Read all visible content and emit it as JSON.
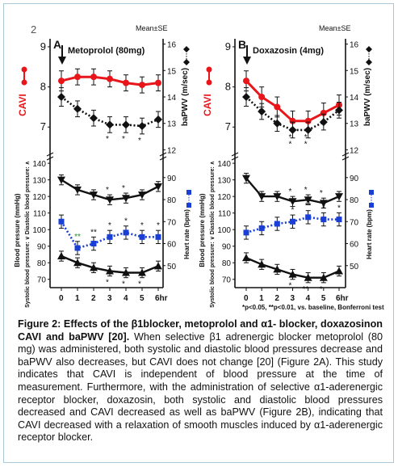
{
  "figure_number": "2",
  "mean_se_label": "Mean±SE",
  "footnote": "*p<0.05, **p<0.01, vs. baseline, Bonferroni test",
  "caption": {
    "bold": "Figure 2: Effects of the β1blocker, metoprolol and α1- blocker, doxazosinon CAVI and baPWV [20].",
    "text": " When selective β1 adrenergic blocker metoprolol (80 mg) was administered, both systolic and diastolic blood pressures decrease and baPWV also decreases, but CAVI does not change [20] (Figure 2A). This study indicates that CAVI is independent of blood pressure at the time of measurement. Furthermore, with the administration of selective α1-aderenergic receptor blocker, doxazosin, both systolic and diastolic blood pressures decreased and CAVI decreased as well as baPWV (Figure 2B), indicating that CAVI decreased with a relaxation of smooth muscles induced by α1-aderenergic receptor blocker."
  },
  "colors": {
    "cavi": "#e8161b",
    "hr": "#1a3fd6",
    "ink": "#111111",
    "frame": "#a8c8d8"
  },
  "chart_data": [
    {
      "type": "line",
      "panel": "A",
      "drug_label": "Metoprolol (80mg)",
      "x": [
        0,
        1,
        2,
        3,
        4,
        5,
        6
      ],
      "x_tick_labels": [
        "0",
        "1",
        "2",
        "3",
        "4",
        "5",
        "6hr"
      ],
      "top": {
        "left_axis": {
          "label": "CAVI",
          "ticks": [
            "7",
            "8",
            "9"
          ],
          "ylim": [
            6.3,
            9.2
          ]
        },
        "right_axis": {
          "label": "baPWV (m/sec)",
          "ticks": [
            "12",
            "13",
            "14",
            "15",
            "16"
          ],
          "ylim": [
            11.8,
            16.2
          ]
        },
        "series": [
          {
            "key": "cavi",
            "axis": "left",
            "style": "solid-red",
            "values": [
              8.15,
              8.25,
              8.25,
              8.2,
              8.1,
              8.05,
              8.1
            ],
            "err": [
              0.25,
              0.2,
              0.2,
              0.2,
              0.2,
              0.2,
              0.2
            ],
            "marks": [
              "",
              "",
              "",
              "",
              "",
              "",
              ""
            ]
          },
          {
            "key": "bapwv",
            "axis": "right",
            "style": "dotted-diamond",
            "values": [
              14.0,
              13.55,
              13.2,
              12.95,
              12.95,
              12.9,
              13.15
            ],
            "err": [
              0.35,
              0.3,
              0.3,
              0.3,
              0.3,
              0.3,
              0.3
            ],
            "marks": [
              "",
              "",
              "",
              "*",
              "*",
              "*",
              ""
            ]
          }
        ]
      },
      "bottom": {
        "left_axis": {
          "label": "Blood pressure (mmHg)",
          "sublabel": "Systolic blood pressure: ∨ Diastolic blood pressure: ∧",
          "ticks": [
            "70",
            "80",
            "90",
            "100",
            "110",
            "120",
            "130",
            "140"
          ],
          "ylim": [
            65,
            142
          ]
        },
        "right_axis": {
          "label": "Heart rate (bpm)",
          "ticks": [
            "50",
            "60",
            "70",
            "80",
            "90"
          ],
          "ylim": [
            40,
            98
          ]
        },
        "series": [
          {
            "key": "sbp",
            "axis": "left",
            "style": "solid-down-triangle",
            "values": [
              130,
              124,
              121,
              118,
              119,
              121,
              126
            ],
            "err": [
              3,
              3,
              3,
              3,
              3,
              3,
              3
            ],
            "marks": [
              "",
              "",
              "",
              "*",
              "*",
              "",
              ""
            ]
          },
          {
            "key": "hr",
            "axis": "right",
            "style": "dotted-blue-square",
            "values": [
              70,
              58,
              60,
              63,
              65,
              63,
              63
            ],
            "err": [
              3,
              3,
              3,
              3,
              3,
              3,
              3
            ],
            "marks": [
              "",
              "**",
              "**",
              "*",
              "*",
              "*",
              "*"
            ]
          },
          {
            "key": "dbp",
            "axis": "left",
            "style": "solid-up-triangle",
            "values": [
              84,
              80,
              77,
              75,
              74,
              74,
              78
            ],
            "err": [
              3,
              3,
              3,
              3,
              3,
              3,
              3
            ],
            "marks": [
              "",
              "",
              "",
              "*",
              "*",
              "*",
              ""
            ]
          }
        ]
      }
    },
    {
      "type": "line",
      "panel": "B",
      "drug_label": "Doxazosin (4mg)",
      "x": [
        0,
        1,
        2,
        3,
        4,
        5,
        6
      ],
      "x_tick_labels": [
        "0",
        "1",
        "2",
        "3",
        "4",
        "5",
        "6hr"
      ],
      "top": {
        "left_axis": {
          "label": "CAVI",
          "ticks": [
            "7",
            "8",
            "9"
          ],
          "ylim": [
            6.3,
            9.2
          ]
        },
        "right_axis": {
          "label": "baPWV (m/sec)",
          "ticks": [
            "12",
            "13",
            "14",
            "15",
            "16"
          ],
          "ylim": [
            11.8,
            16.2
          ]
        },
        "series": [
          {
            "key": "cavi",
            "axis": "left",
            "style": "solid-red",
            "values": [
              8.15,
              7.75,
              7.5,
              7.15,
              7.15,
              7.35,
              7.55
            ],
            "err": [
              0.25,
              0.25,
              0.25,
              0.25,
              0.25,
              0.25,
              0.25
            ],
            "marks": [
              "",
              "",
              "",
              "*",
              "*",
              "",
              ""
            ]
          },
          {
            "key": "bapwv",
            "axis": "right",
            "style": "dotted-diamond",
            "values": [
              14.0,
              13.45,
              13.0,
              12.75,
              12.75,
              13.05,
              13.5
            ],
            "err": [
              0.35,
              0.3,
              0.3,
              0.3,
              0.3,
              0.3,
              0.3
            ],
            "marks": [
              "",
              "",
              "",
              "*",
              "*",
              "",
              ""
            ]
          }
        ]
      },
      "bottom": {
        "left_axis": {
          "label": "Blood pressure (mmHg)",
          "sublabel": "Systolic blood pressure: ∨ Diastolic blood pressure: ∧",
          "ticks": [
            "70",
            "80",
            "90",
            "100",
            "110",
            "120",
            "130",
            "140"
          ],
          "ylim": [
            65,
            142
          ]
        },
        "right_axis": {
          "label": "Heart rate (bpm)",
          "ticks": [
            "50",
            "60",
            "70",
            "80",
            "90"
          ],
          "ylim": [
            40,
            98
          ]
        },
        "series": [
          {
            "key": "sbp",
            "axis": "left",
            "style": "solid-down-triangle",
            "values": [
              131,
              120,
              120,
              117,
              118,
              116,
              120
            ],
            "err": [
              3,
              3,
              3,
              3,
              3,
              3,
              3
            ],
            "marks": [
              "",
              "",
              "",
              "*",
              "*",
              "*",
              ""
            ]
          },
          {
            "key": "hr",
            "axis": "right",
            "style": "dotted-blue-square",
            "values": [
              65,
              67,
              69,
              70,
              72,
              71,
              71
            ],
            "err": [
              3,
              3,
              3,
              3,
              3,
              3,
              3
            ],
            "marks": [
              "",
              "",
              "",
              "*",
              "**",
              "*",
              "*"
            ]
          },
          {
            "key": "dbp",
            "axis": "left",
            "style": "solid-up-triangle",
            "values": [
              83,
              79,
              76,
              73,
              71,
              71,
              75
            ],
            "err": [
              3,
              3,
              3,
              3,
              3,
              3,
              3
            ],
            "marks": [
              "",
              "",
              "",
              "*",
              "**",
              "*",
              ""
            ]
          }
        ]
      }
    }
  ]
}
